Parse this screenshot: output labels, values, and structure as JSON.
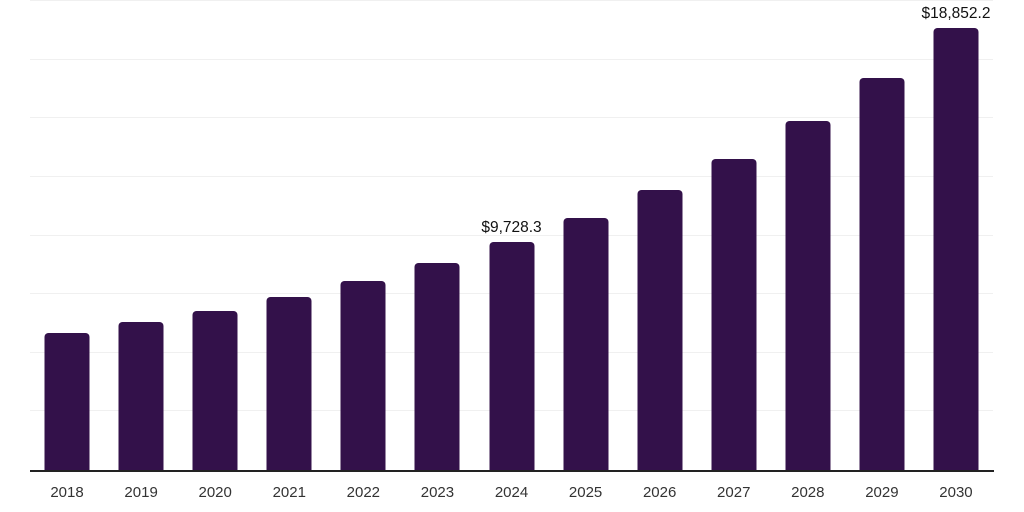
{
  "chart_data": {
    "type": "bar",
    "title": "",
    "xlabel": "",
    "ylabel": "",
    "categories": [
      "2018",
      "2019",
      "2020",
      "2021",
      "2022",
      "2023",
      "2024",
      "2025",
      "2026",
      "2027",
      "2028",
      "2029",
      "2030"
    ],
    "values": [
      5840,
      6320,
      6780,
      7390,
      8070,
      8810,
      9728.3,
      10730,
      11940,
      13260,
      14870,
      16700,
      18852.2
    ],
    "value_labels": [
      "",
      "",
      "",
      "",
      "",
      "",
      "$9,728.3",
      "",
      "",
      "",
      "",
      "",
      "$18,852.2"
    ],
    "ylim": [
      0,
      20000
    ],
    "gridline_step": 2500,
    "grid": true,
    "legend": false,
    "y_axis_labels_visible": false,
    "bar_color": "#33114A",
    "axis_line_color": "#222222",
    "gridline_color": "#f0f0f0",
    "value_label_color": "#111111",
    "tick_label_color": "#333333"
  }
}
